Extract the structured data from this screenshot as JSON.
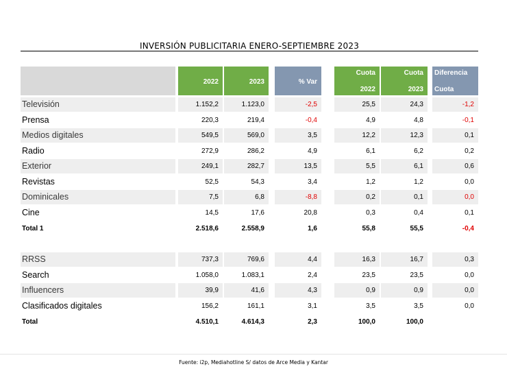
{
  "title": "INVERSIÓN PUBLICITARIA ENERO-SEPTIEMBRE 2023",
  "headers": {
    "y2022": "2022",
    "y2023": "2023",
    "var": "% Var",
    "cuota_label": "Cuota",
    "cuota2022": "2022",
    "cuota2023": "2023",
    "diff_line1": "Diferencia",
    "diff_line2": "Cuota"
  },
  "rows": [
    {
      "label": "Televisión",
      "v2022": "1.152,2",
      "v2023": "1.123,0",
      "var": "-2,5",
      "c2022": "25,5",
      "c2023": "24,3",
      "diff": "-1,2"
    },
    {
      "label": "Prensa",
      "v2022": "220,3",
      "v2023": "219,4",
      "var": "-0,4",
      "c2022": "4,9",
      "c2023": "4,8",
      "diff": "-0,1"
    },
    {
      "label": "Medios digitales",
      "v2022": "549,5",
      "v2023": "569,0",
      "var": "3,5",
      "c2022": "12,2",
      "c2023": "12,3",
      "diff": "0,1"
    },
    {
      "label": "Radio",
      "v2022": "272,9",
      "v2023": "286,2",
      "var": "4,9",
      "c2022": "6,1",
      "c2023": "6,2",
      "diff": "0,2"
    },
    {
      "label": "Exterior",
      "v2022": "249,1",
      "v2023": "282,7",
      "var": "13,5",
      "c2022": "5,5",
      "c2023": "6,1",
      "diff": "0,6"
    },
    {
      "label": "Revistas",
      "v2022": "52,5",
      "v2023": "54,3",
      "var": "3,4",
      "c2022": "1,2",
      "c2023": "1,2",
      "diff": "0,0"
    },
    {
      "label": "Dominicales",
      "v2022": "7,5",
      "v2023": "6,8",
      "var": "-8,8",
      "c2022": "0,2",
      "c2023": "0,1",
      "diff": "0,0"
    },
    {
      "label": "Cine",
      "v2022": "14,5",
      "v2023": "17,6",
      "var": "20,8",
      "c2022": "0,3",
      "c2023": "0,4",
      "diff": "0,1"
    },
    {
      "label": "Total 1",
      "v2022": "2.518,6",
      "v2023": "2.558,9",
      "var": "1,6",
      "c2022": "55,8",
      "c2023": "55,5",
      "diff": "-0,4"
    },
    {
      "label": "RRSS",
      "v2022": "737,3",
      "v2023": "769,6",
      "var": "4,4",
      "c2022": "16,3",
      "c2023": "16,7",
      "diff": "0,3"
    },
    {
      "label": "Search",
      "v2022": "1.058,0",
      "v2023": "1.083,1",
      "var": "2,4",
      "c2022": "23,5",
      "c2023": "23,5",
      "diff": "0,0"
    },
    {
      "label": "Influencers",
      "v2022": "39,9",
      "v2023": "41,6",
      "var": "4,3",
      "c2022": "0,9",
      "c2023": "0,9",
      "diff": "0,0"
    },
    {
      "label": "Clasificados digitales",
      "v2022": "156,2",
      "v2023": "161,1",
      "var": "3,1",
      "c2022": "3,5",
      "c2023": "3,5",
      "diff": "0,0"
    },
    {
      "label": "Total",
      "v2022": "4.510,1",
      "v2023": "4.614,3",
      "var": "2,3",
      "c2022": "100,0",
      "c2023": "100,0",
      "diff": ""
    }
  ],
  "source": "Fuente: i2p, Mediahotline  S/ datos de Arce Media y Kantar",
  "colors": {
    "header_green": "#70ad47",
    "header_blue": "#8497b0",
    "header_gray": "#d9d9d9",
    "negative": "#e00000"
  }
}
